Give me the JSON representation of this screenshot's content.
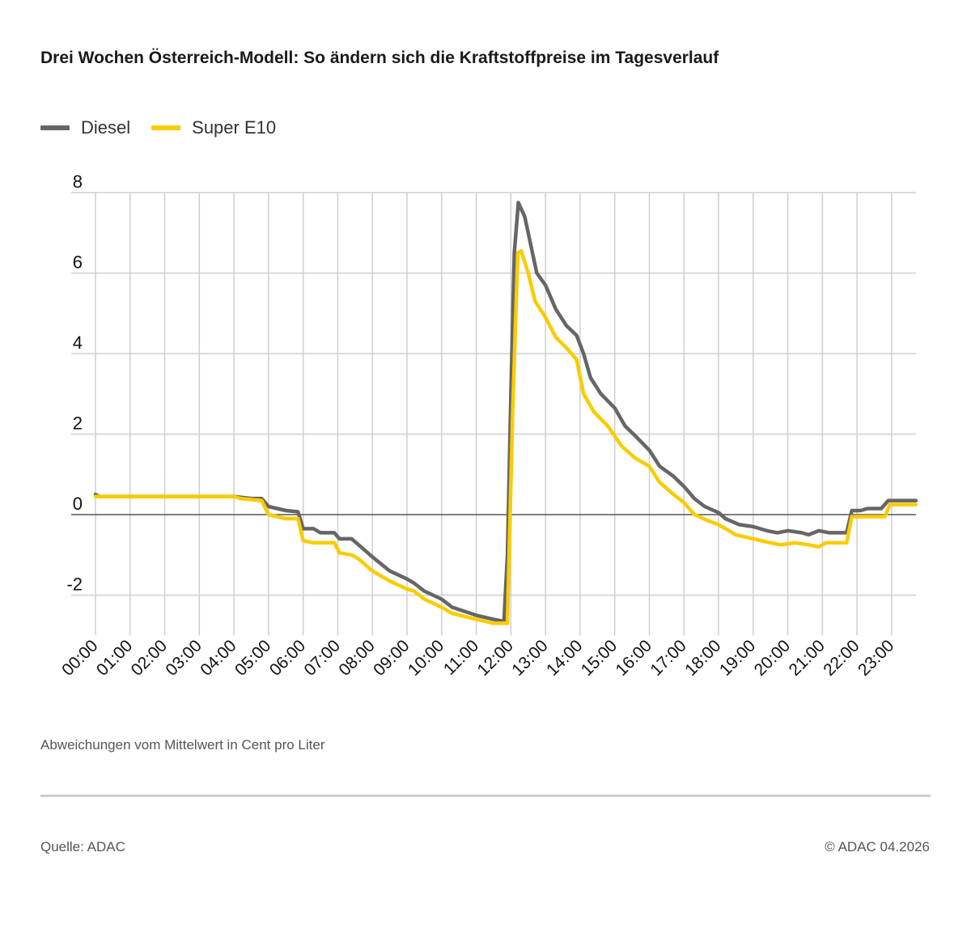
{
  "title": "Drei Wochen Österreich-Modell: So ändern sich die Kraftstoffpreise im Tagesverlauf",
  "note": "Abweichungen vom Mittelwert in Cent pro Liter",
  "source": "Quelle: ADAC",
  "copyright": "© ADAC 04.2026",
  "chart_data": {
    "type": "line",
    "title": "Drei Wochen Österreich-Modell: So ändern sich die Kraftstoffpreise im Tagesverlauf",
    "xlabel": "",
    "ylabel": "",
    "ylim": [
      -3,
      8
    ],
    "xlim": [
      "00:00",
      "23:42"
    ],
    "yticks": [
      -2,
      0,
      2,
      4,
      6,
      8
    ],
    "xticks": [
      "00:00",
      "01:00",
      "02:00",
      "03:00",
      "04:00",
      "05:00",
      "06:00",
      "07:00",
      "08:00",
      "09:00",
      "10:00",
      "11:00",
      "12:00",
      "13:00",
      "14:00",
      "15:00",
      "16:00",
      "17:00",
      "18:00",
      "19:00",
      "20:00",
      "21:00",
      "22:00",
      "23:00"
    ],
    "grid": true,
    "legend_position": "top-left",
    "series": [
      {
        "name": "Diesel",
        "color": "#666666",
        "points": [
          [
            "00:00",
            0.5
          ],
          [
            "00:06",
            0.45
          ],
          [
            "04:00",
            0.45
          ],
          [
            "04:30",
            0.4
          ],
          [
            "04:48",
            0.4
          ],
          [
            "05:00",
            0.2
          ],
          [
            "05:30",
            0.1
          ],
          [
            "05:51",
            0.07
          ],
          [
            "06:00",
            -0.35
          ],
          [
            "06:18",
            -0.35
          ],
          [
            "06:30",
            -0.45
          ],
          [
            "06:54",
            -0.45
          ],
          [
            "07:03",
            -0.6
          ],
          [
            "07:24",
            -0.6
          ],
          [
            "07:36",
            -0.75
          ],
          [
            "08:00",
            -1.05
          ],
          [
            "08:30",
            -1.4
          ],
          [
            "09:00",
            -1.6
          ],
          [
            "09:12",
            -1.7
          ],
          [
            "09:30",
            -1.9
          ],
          [
            "10:00",
            -2.1
          ],
          [
            "10:18",
            -2.3
          ],
          [
            "11:00",
            -2.5
          ],
          [
            "11:30",
            -2.6
          ],
          [
            "11:48",
            -2.65
          ],
          [
            "11:54",
            -1.0
          ],
          [
            "12:00",
            3.0
          ],
          [
            "12:06",
            6.5
          ],
          [
            "12:13",
            7.75
          ],
          [
            "12:24",
            7.4
          ],
          [
            "12:36",
            6.6
          ],
          [
            "12:45",
            6.0
          ],
          [
            "13:00",
            5.7
          ],
          [
            "13:18",
            5.1
          ],
          [
            "13:36",
            4.7
          ],
          [
            "13:54",
            4.45
          ],
          [
            "14:06",
            4.0
          ],
          [
            "14:18",
            3.4
          ],
          [
            "14:36",
            3.0
          ],
          [
            "15:00",
            2.65
          ],
          [
            "15:18",
            2.2
          ],
          [
            "15:36",
            1.95
          ],
          [
            "16:00",
            1.6
          ],
          [
            "16:18",
            1.2
          ],
          [
            "16:42",
            0.95
          ],
          [
            "17:00",
            0.7
          ],
          [
            "17:18",
            0.4
          ],
          [
            "17:36",
            0.2
          ],
          [
            "18:00",
            0.05
          ],
          [
            "18:12",
            -0.1
          ],
          [
            "18:36",
            -0.25
          ],
          [
            "19:00",
            -0.3
          ],
          [
            "19:24",
            -0.4
          ],
          [
            "19:42",
            -0.45
          ],
          [
            "20:00",
            -0.4
          ],
          [
            "20:24",
            -0.45
          ],
          [
            "20:36",
            -0.5
          ],
          [
            "20:54",
            -0.4
          ],
          [
            "21:12",
            -0.45
          ],
          [
            "21:42",
            -0.45
          ],
          [
            "21:51",
            0.1
          ],
          [
            "22:06",
            0.1
          ],
          [
            "22:18",
            0.15
          ],
          [
            "22:42",
            0.15
          ],
          [
            "22:54",
            0.35
          ],
          [
            "23:42",
            0.35
          ]
        ]
      },
      {
        "name": "Super E10",
        "color": "#FACC00",
        "points": [
          [
            "00:00",
            0.45
          ],
          [
            "04:00",
            0.45
          ],
          [
            "04:12",
            0.4
          ],
          [
            "04:48",
            0.35
          ],
          [
            "05:00",
            0.0
          ],
          [
            "05:30",
            -0.1
          ],
          [
            "05:51",
            -0.1
          ],
          [
            "06:00",
            -0.65
          ],
          [
            "06:18",
            -0.7
          ],
          [
            "06:54",
            -0.7
          ],
          [
            "07:03",
            -0.95
          ],
          [
            "07:24",
            -1.0
          ],
          [
            "07:36",
            -1.1
          ],
          [
            "08:00",
            -1.4
          ],
          [
            "08:30",
            -1.65
          ],
          [
            "09:00",
            -1.85
          ],
          [
            "09:12",
            -1.9
          ],
          [
            "09:30",
            -2.1
          ],
          [
            "10:00",
            -2.3
          ],
          [
            "10:18",
            -2.45
          ],
          [
            "11:00",
            -2.6
          ],
          [
            "11:30",
            -2.7
          ],
          [
            "11:54",
            -2.7
          ],
          [
            "12:03",
            2.5
          ],
          [
            "12:12",
            6.5
          ],
          [
            "12:18",
            6.55
          ],
          [
            "12:30",
            6.0
          ],
          [
            "12:42",
            5.3
          ],
          [
            "13:00",
            4.9
          ],
          [
            "13:18",
            4.4
          ],
          [
            "13:36",
            4.15
          ],
          [
            "13:54",
            3.85
          ],
          [
            "14:06",
            3.0
          ],
          [
            "14:24",
            2.55
          ],
          [
            "14:48",
            2.2
          ],
          [
            "15:12",
            1.7
          ],
          [
            "15:36",
            1.4
          ],
          [
            "16:00",
            1.2
          ],
          [
            "16:18",
            0.8
          ],
          [
            "16:42",
            0.5
          ],
          [
            "17:00",
            0.3
          ],
          [
            "17:18",
            0.0
          ],
          [
            "17:42",
            -0.15
          ],
          [
            "18:00",
            -0.25
          ],
          [
            "18:30",
            -0.5
          ],
          [
            "19:00",
            -0.6
          ],
          [
            "19:30",
            -0.7
          ],
          [
            "19:48",
            -0.75
          ],
          [
            "20:12",
            -0.7
          ],
          [
            "20:36",
            -0.75
          ],
          [
            "20:54",
            -0.8
          ],
          [
            "21:06",
            -0.7
          ],
          [
            "21:42",
            -0.7
          ],
          [
            "21:51",
            -0.05
          ],
          [
            "22:48",
            -0.05
          ],
          [
            "22:57",
            0.25
          ],
          [
            "23:42",
            0.25
          ]
        ]
      }
    ]
  }
}
